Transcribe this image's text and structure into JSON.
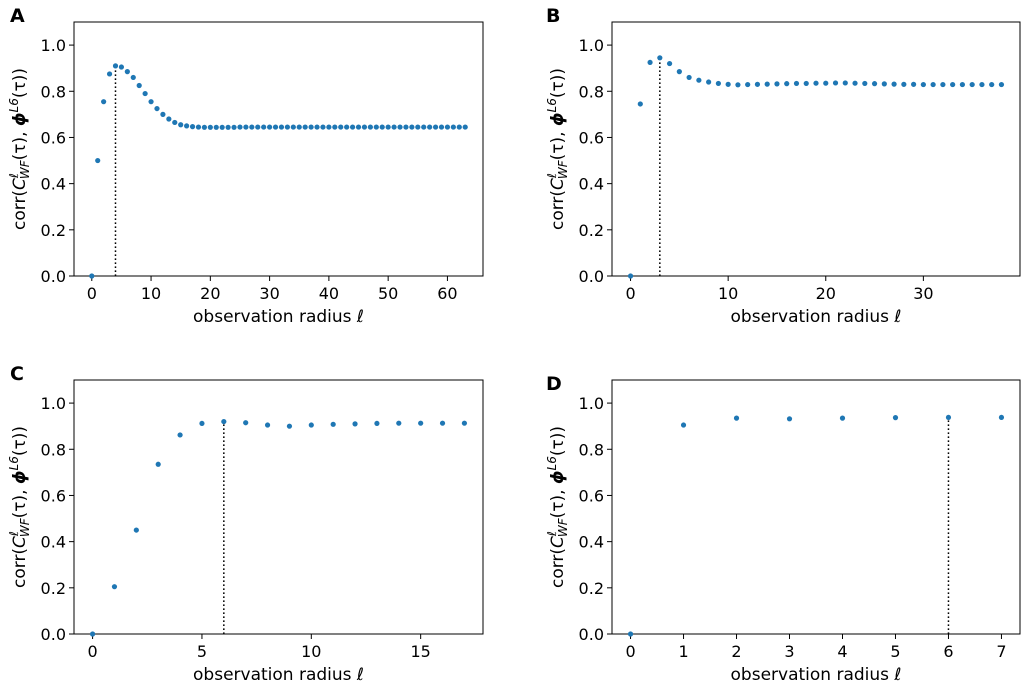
{
  "figure": {
    "colors": {
      "point": "#1f77b4",
      "axis": "#000000"
    }
  },
  "chart_data": [
    {
      "panel": "A",
      "type": "scatter",
      "xlabel": "observation radius ℓ",
      "ylabel": "corr(C_WF^ℓ(τ), ϕ^L6(τ))",
      "ylabel_parts": {
        "prefix": "corr(",
        "c": "C",
        "sup": "ℓ",
        "sub": "WF",
        "mid": "(τ), ",
        "phi": "ϕ",
        "phi_sup": "L6",
        "suffix": "(τ))"
      },
      "xlim": [
        -3,
        66
      ],
      "ylim": [
        0,
        1.1
      ],
      "xticks": [
        0,
        10,
        20,
        30,
        40,
        50,
        60
      ],
      "yticks": [
        0.0,
        0.2,
        0.4,
        0.6,
        0.8,
        1.0
      ],
      "ytick_labels": [
        "0.0",
        "0.2",
        "0.4",
        "0.6",
        "0.8",
        "1.0"
      ],
      "marker_x": 4,
      "marker_y": 0.91,
      "x": [
        0,
        1,
        2,
        3,
        4,
        5,
        6,
        7,
        8,
        9,
        10,
        11,
        12,
        13,
        14,
        15,
        16,
        17,
        18,
        19,
        20,
        21,
        22,
        23,
        24,
        25,
        26,
        27,
        28,
        29,
        30,
        31,
        32,
        33,
        34,
        35,
        36,
        37,
        38,
        39,
        40,
        41,
        42,
        43,
        44,
        45,
        46,
        47,
        48,
        49,
        50,
        51,
        52,
        53,
        54,
        55,
        56,
        57,
        58,
        59,
        60,
        61,
        62,
        63
      ],
      "y": [
        0.0,
        0.5,
        0.755,
        0.875,
        0.91,
        0.905,
        0.885,
        0.86,
        0.825,
        0.79,
        0.755,
        0.725,
        0.7,
        0.68,
        0.665,
        0.655,
        0.65,
        0.647,
        0.645,
        0.644,
        0.644,
        0.644,
        0.644,
        0.644,
        0.644,
        0.645,
        0.645,
        0.645,
        0.645,
        0.645,
        0.645,
        0.645,
        0.645,
        0.645,
        0.645,
        0.645,
        0.645,
        0.645,
        0.645,
        0.645,
        0.645,
        0.645,
        0.645,
        0.645,
        0.645,
        0.645,
        0.645,
        0.645,
        0.645,
        0.645,
        0.645,
        0.645,
        0.645,
        0.645,
        0.645,
        0.645,
        0.645,
        0.645,
        0.645,
        0.645,
        0.645,
        0.645,
        0.645,
        0.645
      ]
    },
    {
      "panel": "B",
      "type": "scatter",
      "xlabel": "observation radius ℓ",
      "ylabel": "corr(C_WF^ℓ(τ), ϕ^L6(τ))",
      "ylabel_parts": {
        "prefix": "corr(",
        "c": "C",
        "sup": "ℓ",
        "sub": "WF",
        "mid": "(τ), ",
        "phi": "ϕ",
        "phi_sup": "L6",
        "suffix": "(τ))"
      },
      "xlim": [
        -1.9,
        39.9
      ],
      "ylim": [
        0,
        1.1
      ],
      "xticks": [
        0,
        10,
        20,
        30
      ],
      "yticks": [
        0.0,
        0.2,
        0.4,
        0.6,
        0.8,
        1.0
      ],
      "ytick_labels": [
        "0.0",
        "0.2",
        "0.4",
        "0.6",
        "0.8",
        "1.0"
      ],
      "marker_x": 3,
      "marker_y": 0.945,
      "x": [
        0,
        1,
        2,
        3,
        4,
        5,
        6,
        7,
        8,
        9,
        10,
        11,
        12,
        13,
        14,
        15,
        16,
        17,
        18,
        19,
        20,
        21,
        22,
        23,
        24,
        25,
        26,
        27,
        28,
        29,
        30,
        31,
        32,
        33,
        34,
        35,
        36,
        37,
        38
      ],
      "y": [
        0.0,
        0.745,
        0.925,
        0.945,
        0.92,
        0.885,
        0.86,
        0.848,
        0.84,
        0.834,
        0.83,
        0.828,
        0.829,
        0.83,
        0.831,
        0.832,
        0.833,
        0.834,
        0.834,
        0.835,
        0.835,
        0.836,
        0.836,
        0.835,
        0.834,
        0.833,
        0.832,
        0.831,
        0.83,
        0.83,
        0.829,
        0.829,
        0.829,
        0.829,
        0.829,
        0.829,
        0.829,
        0.829,
        0.829
      ]
    },
    {
      "panel": "C",
      "type": "scatter",
      "xlabel": "observation radius ℓ",
      "ylabel": "corr(C_WF^ℓ(τ), ϕ^L6(τ))",
      "ylabel_parts": {
        "prefix": "corr(",
        "c": "C",
        "sup": "ℓ",
        "sub": "WF",
        "mid": "(τ), ",
        "phi": "ϕ",
        "phi_sup": "L6",
        "suffix": "(τ))"
      },
      "xlim": [
        -0.85,
        17.85
      ],
      "ylim": [
        0,
        1.1
      ],
      "xticks": [
        0,
        5,
        10,
        15
      ],
      "yticks": [
        0.0,
        0.2,
        0.4,
        0.6,
        0.8,
        1.0
      ],
      "ytick_labels": [
        "0.0",
        "0.2",
        "0.4",
        "0.6",
        "0.8",
        "1.0"
      ],
      "marker_x": 6,
      "marker_y": 0.92,
      "x": [
        0,
        1,
        2,
        3,
        4,
        5,
        6,
        7,
        8,
        9,
        10,
        11,
        12,
        13,
        14,
        15,
        16,
        17
      ],
      "y": [
        0.0,
        0.205,
        0.45,
        0.735,
        0.862,
        0.912,
        0.92,
        0.915,
        0.905,
        0.9,
        0.905,
        0.908,
        0.91,
        0.912,
        0.913,
        0.913,
        0.913,
        0.913
      ]
    },
    {
      "panel": "D",
      "type": "scatter",
      "xlabel": "observation radius ℓ",
      "ylabel": "corr(C_WF^ℓ(τ), ϕ^L6(τ))",
      "ylabel_parts": {
        "prefix": "corr(",
        "c": "C",
        "sup": "ℓ",
        "sub": "WF",
        "mid": "(τ), ",
        "phi": "ϕ",
        "phi_sup": "L6",
        "suffix": "(τ))"
      },
      "xlim": [
        -0.35,
        7.35
      ],
      "ylim": [
        0,
        1.1
      ],
      "xticks": [
        0,
        1,
        2,
        3,
        4,
        5,
        6,
        7
      ],
      "yticks": [
        0.0,
        0.2,
        0.4,
        0.6,
        0.8,
        1.0
      ],
      "ytick_labels": [
        "0.0",
        "0.2",
        "0.4",
        "0.6",
        "0.8",
        "1.0"
      ],
      "marker_x": 6,
      "marker_y": 0.938,
      "x": [
        0,
        1,
        2,
        3,
        4,
        5,
        6,
        7
      ],
      "y": [
        0.0,
        0.905,
        0.935,
        0.932,
        0.935,
        0.937,
        0.938,
        0.938
      ]
    }
  ]
}
